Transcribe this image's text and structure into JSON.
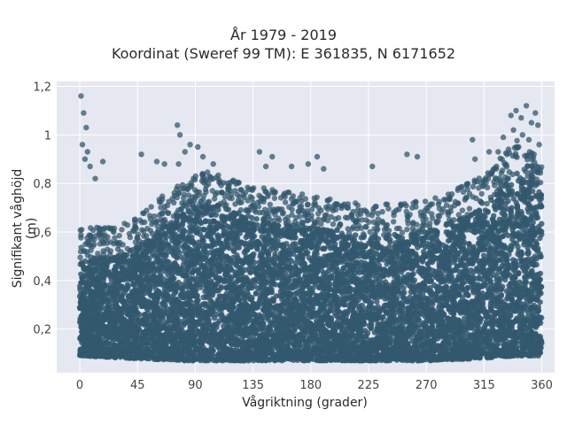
{
  "chart_data": {
    "type": "scatter",
    "title_lines": [
      "År 1979 - 2019",
      "Koordinat (Sweref 99 TM): E 361835, N 6171652"
    ],
    "xlabel": "Vågriktning (grader)",
    "ylabel": "Signifikant våghöjd (m)",
    "xlim": [
      -18,
      370
    ],
    "ylim": [
      0.02,
      1.22
    ],
    "xticks": [
      0,
      45,
      90,
      135,
      180,
      225,
      270,
      315,
      360
    ],
    "yticks": [
      0.2,
      0.4,
      0.6,
      0.8,
      1,
      1.2
    ],
    "ytick_labels": [
      "0,2",
      "0,4",
      "0,6",
      "0,8",
      "1",
      "1,2"
    ],
    "grid": true,
    "marker_color": "#33586e",
    "background_color": "#e5e8f0",
    "x_range": [
      0,
      360
    ],
    "dense_band": [
      {
        "x": 0,
        "low": 0.09,
        "high": 0.48
      },
      {
        "x": 40,
        "low": 0.08,
        "high": 0.52
      },
      {
        "x": 80,
        "low": 0.07,
        "high": 0.68
      },
      {
        "x": 100,
        "low": 0.07,
        "high": 0.72
      },
      {
        "x": 135,
        "low": 0.07,
        "high": 0.66
      },
      {
        "x": 180,
        "low": 0.07,
        "high": 0.62
      },
      {
        "x": 225,
        "low": 0.07,
        "high": 0.58
      },
      {
        "x": 270,
        "low": 0.07,
        "high": 0.6
      },
      {
        "x": 315,
        "low": 0.08,
        "high": 0.7
      },
      {
        "x": 340,
        "low": 0.09,
        "high": 0.85
      },
      {
        "x": 360,
        "low": 0.09,
        "high": 0.76
      }
    ],
    "outliers": [
      [
        1,
        1.16
      ],
      [
        3,
        1.09
      ],
      [
        5,
        1.03
      ],
      [
        2,
        0.96
      ],
      [
        6,
        0.93
      ],
      [
        4,
        0.9
      ],
      [
        8,
        0.87
      ],
      [
        12,
        0.82
      ],
      [
        18,
        0.89
      ],
      [
        48,
        0.92
      ],
      [
        60,
        0.89
      ],
      [
        66,
        0.88
      ],
      [
        77,
        0.88
      ],
      [
        82,
        0.93
      ],
      [
        76,
        1.04
      ],
      [
        78,
        1.0
      ],
      [
        86,
        0.96
      ],
      [
        92,
        0.95
      ],
      [
        96,
        0.91
      ],
      [
        104,
        0.88
      ],
      [
        140,
        0.93
      ],
      [
        150,
        0.91
      ],
      [
        145,
        0.87
      ],
      [
        165,
        0.87
      ],
      [
        185,
        0.91
      ],
      [
        178,
        0.88
      ],
      [
        190,
        0.86
      ],
      [
        228,
        0.87
      ],
      [
        255,
        0.92
      ],
      [
        263,
        0.91
      ],
      [
        308,
        0.9
      ],
      [
        319,
        0.93
      ],
      [
        326,
        0.93
      ],
      [
        306,
        0.98
      ],
      [
        330,
        0.99
      ],
      [
        336,
        1.08
      ],
      [
        340,
        1.1
      ],
      [
        344,
        1.07
      ],
      [
        348,
        1.12
      ],
      [
        352,
        1.05
      ],
      [
        355,
        1.09
      ],
      [
        357,
        1.04
      ],
      [
        338,
        1.02
      ],
      [
        345,
        1.0
      ],
      [
        350,
        0.98
      ],
      [
        342,
        0.95
      ],
      [
        358,
        0.96
      ],
      [
        333,
        0.92
      ],
      [
        354,
        0.92
      ]
    ]
  }
}
